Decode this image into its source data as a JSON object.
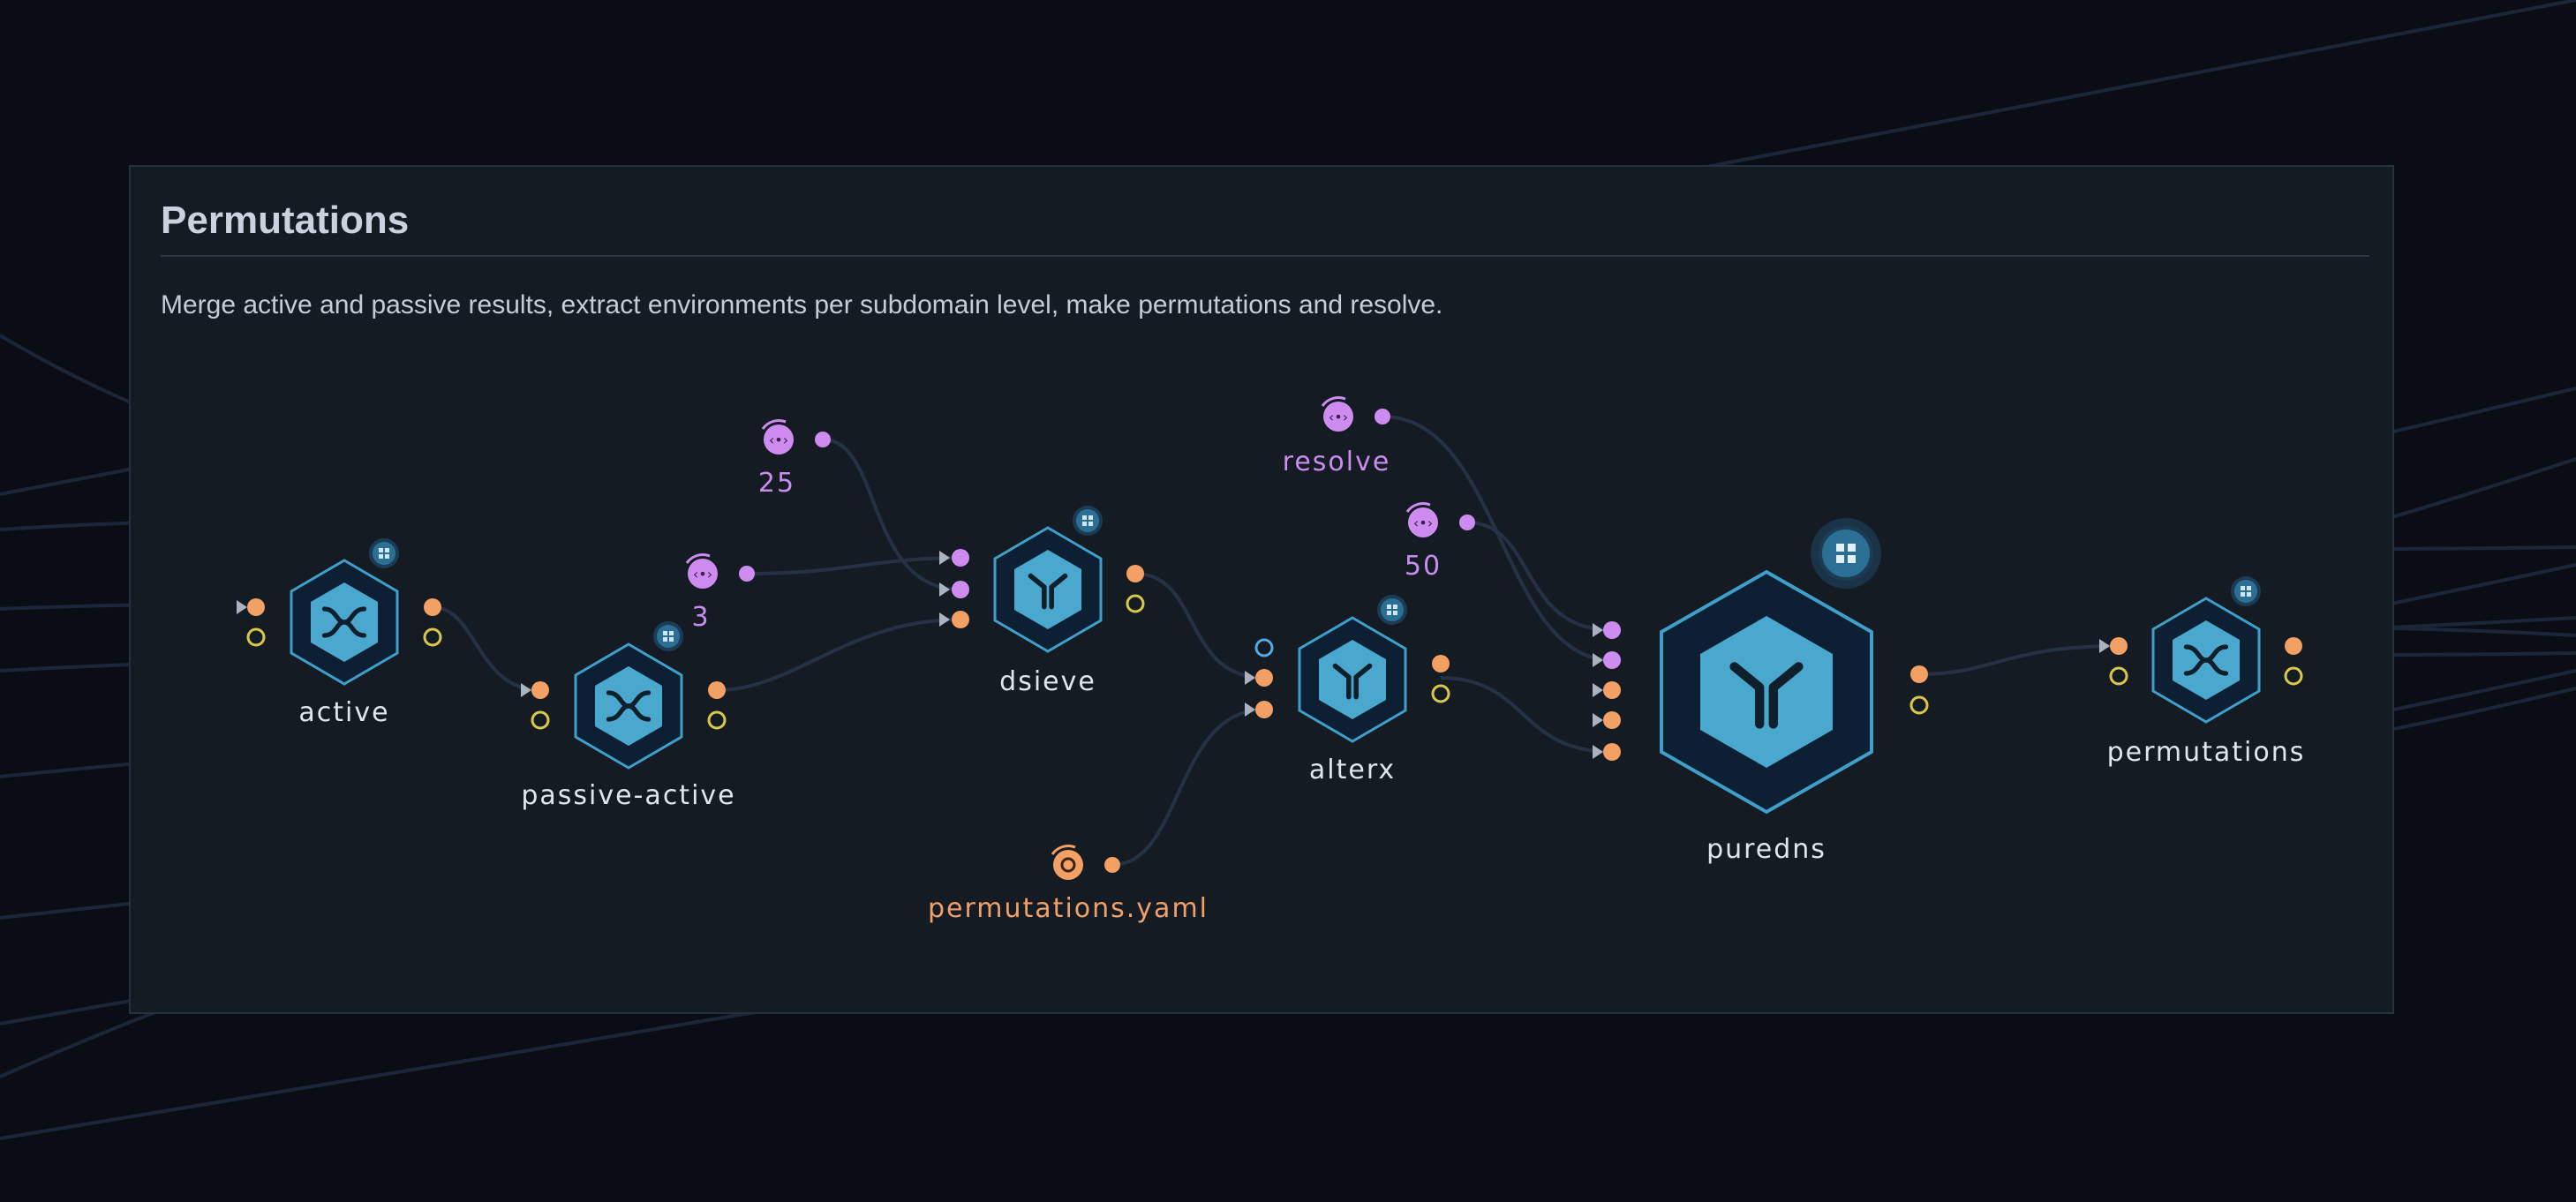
{
  "panel": {
    "title": "Permutations",
    "description": "Merge active and passive results, extract environments per subdomain level, make permutations and resolve."
  },
  "nodes": [
    {
      "id": "active",
      "label": "active",
      "icon": "merge-arrows-icon"
    },
    {
      "id": "passive-active",
      "label": "passive-active",
      "icon": "merge-arrows-icon"
    },
    {
      "id": "dsieve",
      "label": "dsieve",
      "icon": "split-branch-icon"
    },
    {
      "id": "alterx",
      "label": "alterx",
      "icon": "split-branch-icon"
    },
    {
      "id": "puredns",
      "label": "puredns",
      "icon": "split-branch-icon"
    },
    {
      "id": "permutations",
      "label": "permutations",
      "icon": "merge-arrows-icon"
    }
  ],
  "params": [
    {
      "id": "param-25",
      "label": "25",
      "kind": "variable"
    },
    {
      "id": "param-3",
      "label": "3",
      "kind": "variable"
    },
    {
      "id": "param-resolve",
      "label": "resolve",
      "kind": "variable"
    },
    {
      "id": "param-50",
      "label": "50",
      "kind": "variable"
    },
    {
      "id": "param-permutations-yaml",
      "label": "permutations.yaml",
      "kind": "file"
    }
  ],
  "colors": {
    "background": "#0a0e14",
    "panel": "#151b23",
    "node_fill": "#4aa8cf",
    "node_stroke": "#3f9fc9",
    "port_orange": "#f2a064",
    "port_yellow": "#d9c84a",
    "port_purple": "#cf8cf0",
    "port_blue": "#56a9e0"
  }
}
